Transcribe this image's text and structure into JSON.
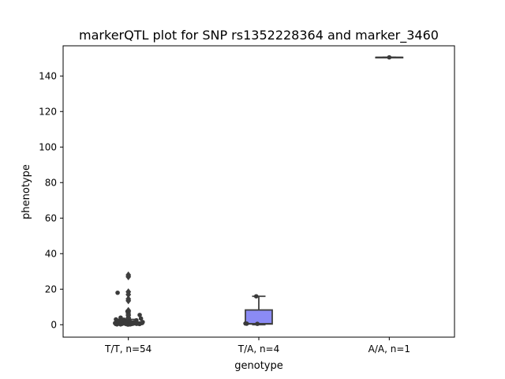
{
  "chart_data": {
    "type": "box",
    "title": "markerQTL plot for SNP rs1352228364 and marker_3460",
    "xlabel": "genotype",
    "ylabel": "phenotype",
    "ylim": [
      -7,
      157
    ],
    "yticks": [
      0,
      20,
      40,
      60,
      80,
      100,
      120,
      140
    ],
    "grid": false,
    "categories": [
      "T/T, n=54",
      "T/A, n=4",
      "A/A, n=1"
    ],
    "boxes": [
      {
        "category": "T/T, n=54",
        "q1": 0.3,
        "median": 0.8,
        "q3": 1.5,
        "whisker_low": 0.0,
        "whisker_high": 3.0,
        "outliers": [
          3.3,
          3.6,
          4.0,
          5.2,
          6.0,
          7.2,
          8.0,
          13.5,
          14.5,
          17.0,
          18.5,
          27.0,
          28.0
        ]
      },
      {
        "category": "T/A, n=4",
        "q1": 0.4,
        "median": 0.6,
        "q3": 8.3,
        "whisker_low": 0.0,
        "whisker_high": 16.0,
        "outliers": []
      },
      {
        "category": "A/A, n=1",
        "q1": 150.5,
        "median": 150.5,
        "q3": 150.5,
        "whisker_low": 150.5,
        "whisker_high": 150.5,
        "outliers": []
      }
    ],
    "points": [
      {
        "category": "T/T, n=54",
        "values": [
          0.1,
          0.2,
          0.2,
          0.3,
          0.3,
          0.3,
          0.4,
          0.4,
          0.4,
          0.5,
          0.5,
          0.5,
          0.6,
          0.6,
          0.6,
          0.7,
          0.7,
          0.7,
          0.8,
          0.8,
          0.8,
          0.9,
          0.9,
          1.0,
          1.0,
          1.0,
          1.1,
          1.1,
          1.2,
          1.2,
          1.3,
          1.4,
          1.5,
          1.5,
          1.6,
          1.8,
          2.0,
          2.0,
          2.2,
          2.5,
          2.6,
          2.8,
          3.0,
          3.5,
          4.0,
          5.5,
          7.5,
          0.2,
          0.4,
          0.6,
          0.9,
          1.2,
          18.0,
          1.8
        ]
      },
      {
        "category": "T/A, n=4",
        "values": [
          0.5,
          0.6,
          0.7,
          16.0
        ]
      },
      {
        "category": "A/A, n=1",
        "values": [
          150.5
        ]
      }
    ],
    "colors": {
      "box_fill": [
        "#8b8bf5",
        "#8b8bf5",
        "#8b8bf5"
      ],
      "box_edge": "#3f3f3f",
      "points": "#3a3a3a"
    }
  }
}
